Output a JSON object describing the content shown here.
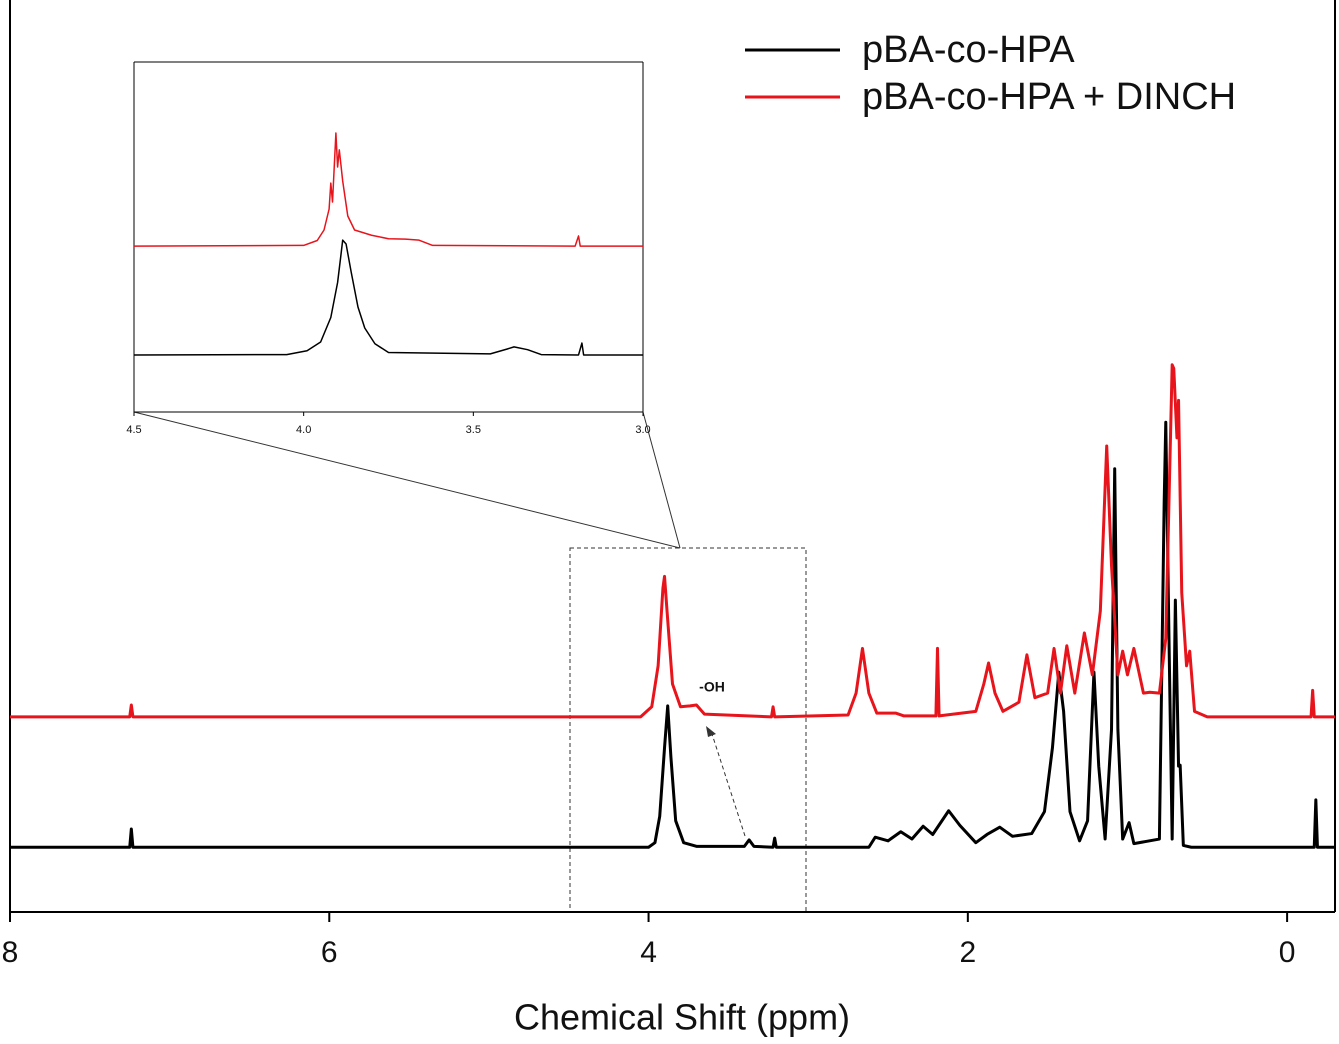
{
  "chart_data": [
    {
      "type": "line",
      "x_label": "Chemical Shift (ppm)",
      "xlim": [
        8,
        -0.3
      ],
      "xticks": [
        8,
        6,
        4,
        2,
        0
      ],
      "ylim": [
        0,
        100
      ],
      "legend": "upper right",
      "annotation": "-OH",
      "series": [
        {
          "name": "pBA-co-HPA",
          "color": "#000000",
          "x": [
            8.0,
            7.25,
            7.24,
            7.23,
            4.0,
            3.96,
            3.93,
            3.9,
            3.88,
            3.86,
            3.83,
            3.78,
            3.7,
            3.4,
            3.37,
            3.34,
            3.22,
            3.21,
            3.2,
            2.62,
            2.58,
            2.5,
            2.42,
            2.35,
            2.28,
            2.22,
            2.12,
            2.05,
            1.95,
            1.88,
            1.8,
            1.72,
            1.6,
            1.52,
            1.47,
            1.43,
            1.4,
            1.36,
            1.3,
            1.25,
            1.21,
            1.18,
            1.14,
            1.1,
            1.08,
            1.06,
            1.03,
            0.99,
            0.96,
            0.8,
            0.77,
            0.76,
            0.74,
            0.72,
            0.7,
            0.68,
            0.67,
            0.65,
            0.6,
            -0.17,
            -0.18,
            -0.19,
            -0.3
          ],
          "values": [
            7.1,
            7.1,
            9.1,
            7.1,
            7.1,
            7.6,
            10.5,
            18,
            22.6,
            17,
            10,
            7.6,
            7.2,
            7.2,
            7.9,
            7.2,
            7.1,
            8.1,
            7.1,
            7.1,
            8.2,
            7.8,
            8.8,
            8.0,
            9.4,
            8.5,
            11.1,
            9.5,
            7.6,
            8.5,
            9.3,
            8.3,
            8.6,
            11,
            18,
            26.3,
            22,
            11,
            7.8,
            10,
            26.3,
            16,
            8,
            20,
            48.6,
            20,
            8,
            9.8,
            7.5,
            8,
            45,
            53.7,
            30,
            8,
            34.2,
            16,
            16.1,
            7.3,
            7.1,
            7.1,
            12.3,
            7.1,
            7.1
          ]
        },
        {
          "name": "pBA-co-HPA + DINCH",
          "color": "#e8141c",
          "x": [
            8.0,
            7.25,
            7.24,
            7.23,
            4.05,
            3.98,
            3.94,
            3.91,
            3.9,
            3.88,
            3.85,
            3.8,
            3.74,
            3.7,
            3.65,
            3.23,
            3.22,
            3.21,
            2.75,
            2.7,
            2.66,
            2.62,
            2.57,
            2.45,
            2.4,
            2.2,
            2.19,
            2.18,
            1.95,
            1.9,
            1.87,
            1.83,
            1.78,
            1.68,
            1.63,
            1.58,
            1.5,
            1.46,
            1.42,
            1.38,
            1.33,
            1.27,
            1.22,
            1.17,
            1.13,
            1.1,
            1.06,
            1.03,
            1.0,
            0.96,
            0.9,
            0.86,
            0.8,
            0.76,
            0.72,
            0.71,
            0.69,
            0.68,
            0.66,
            0.63,
            0.61,
            0.58,
            0.5,
            -0.15,
            -0.16,
            -0.17,
            -0.3
          ],
          "values": [
            21.4,
            21.4,
            22.7,
            21.4,
            21.4,
            22.5,
            27,
            35.5,
            36.8,
            32,
            25,
            22.5,
            22.6,
            22.7,
            21.7,
            21.4,
            22.5,
            21.4,
            21.6,
            24,
            28.9,
            24,
            21.8,
            21.8,
            21.5,
            21.5,
            28.9,
            21.5,
            22,
            25,
            27.3,
            24,
            22,
            23,
            28.2,
            23.5,
            24,
            28.9,
            24,
            29.2,
            24,
            30.6,
            26,
            33,
            51.1,
            38,
            26,
            28.6,
            26,
            28.9,
            24,
            24.1,
            24,
            30,
            60,
            59.6,
            52,
            56.1,
            35,
            27,
            28.6,
            22,
            21.4,
            21.4,
            24.3,
            21.4,
            21.4
          ]
        }
      ]
    },
    {
      "type": "line",
      "xlim": [
        4.5,
        3.0
      ],
      "xticks": [
        4.5,
        {
          "value": 4,
          "label": "4.0"
        },
        3.5,
        {
          "value": 3,
          "label": "3.0"
        }
      ],
      "ylim": [
        0,
        100
      ],
      "series": [
        {
          "color": "#e8141c",
          "x": [
            4.5,
            4.0,
            3.96,
            3.94,
            3.925,
            3.92,
            3.915,
            3.905,
            3.9,
            3.895,
            3.885,
            3.87,
            3.85,
            3.8,
            3.75,
            3.7,
            3.66,
            3.62,
            3.2,
            3.19,
            3.185,
            3.0
          ],
          "values": [
            47.4,
            47.6,
            49,
            52,
            58,
            65.4,
            60,
            79.7,
            70,
            74.9,
            66,
            56,
            52,
            50.5,
            49.5,
            49.4,
            49.1,
            47.6,
            47.4,
            50.3,
            47.4,
            47.4
          ]
        },
        {
          "color": "#000000",
          "x": [
            4.5,
            4.05,
            3.99,
            3.95,
            3.92,
            3.9,
            3.89,
            3.885,
            3.875,
            3.86,
            3.84,
            3.82,
            3.79,
            3.75,
            3.45,
            3.4,
            3.38,
            3.34,
            3.3,
            3.19,
            3.18,
            3.175,
            3.0
          ],
          "values": [
            16.3,
            16.4,
            17.5,
            20,
            27,
            37,
            45,
            49.1,
            48,
            40,
            30,
            24,
            19.5,
            17,
            16.6,
            18,
            18.6,
            17.8,
            16.4,
            16.3,
            19.7,
            16.3,
            16.3
          ]
        }
      ]
    }
  ]
}
